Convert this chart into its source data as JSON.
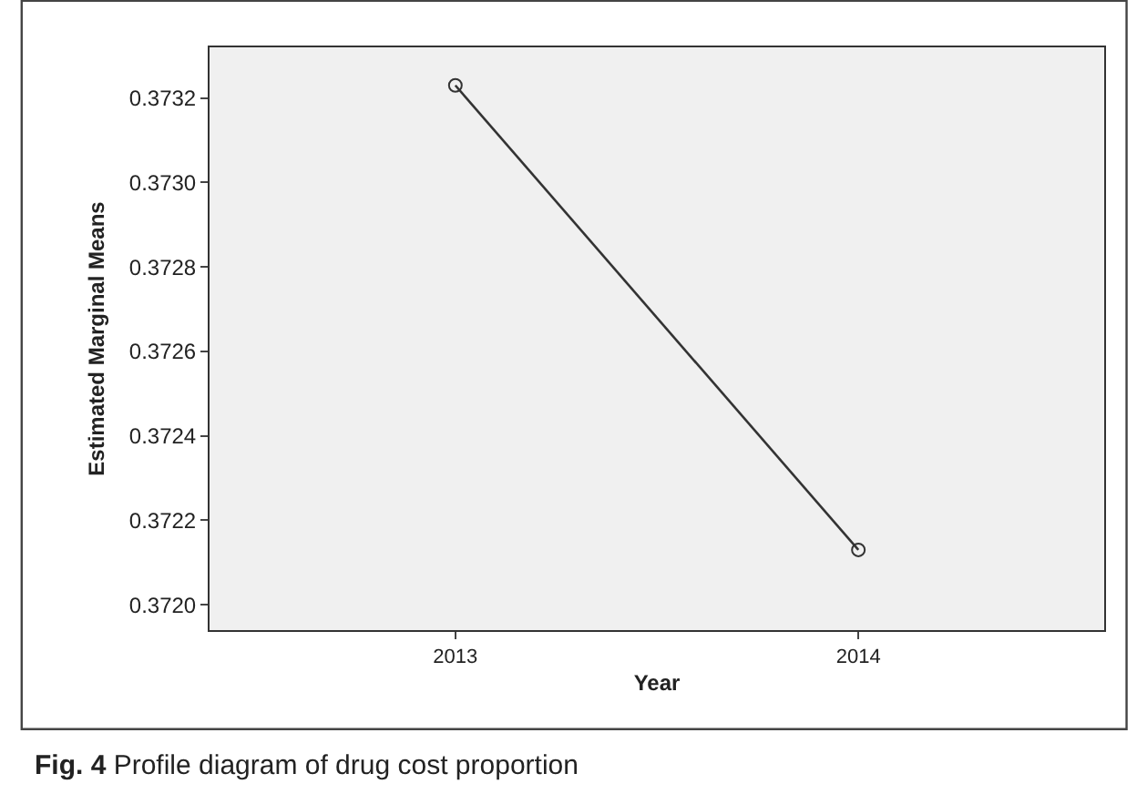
{
  "chart_data": {
    "type": "line",
    "title": "Fig. 4 Profile diagram of drug cost proportion",
    "xlabel": "Year",
    "ylabel": "Estimated Marginal Means",
    "categories": [
      "2013",
      "2014"
    ],
    "series": [
      {
        "color": "#333333",
        "values": [
          0.37323,
          0.37213
        ]
      }
    ],
    "ylim": [
      0.37194,
      0.37332
    ],
    "yticks": [
      {
        "value": 0.372,
        "label": "0.3720"
      },
      {
        "value": 0.3722,
        "label": "0.3722"
      },
      {
        "value": 0.3724,
        "label": "0.3724"
      },
      {
        "value": 0.3726,
        "label": "0.3726"
      },
      {
        "value": 0.3728,
        "label": "0.3728"
      },
      {
        "value": 0.373,
        "label": "0.3730"
      },
      {
        "value": 0.3732,
        "label": "0.3732"
      }
    ],
    "marker": "circle",
    "line_style": "solid",
    "grid": false,
    "legend": false
  }
}
